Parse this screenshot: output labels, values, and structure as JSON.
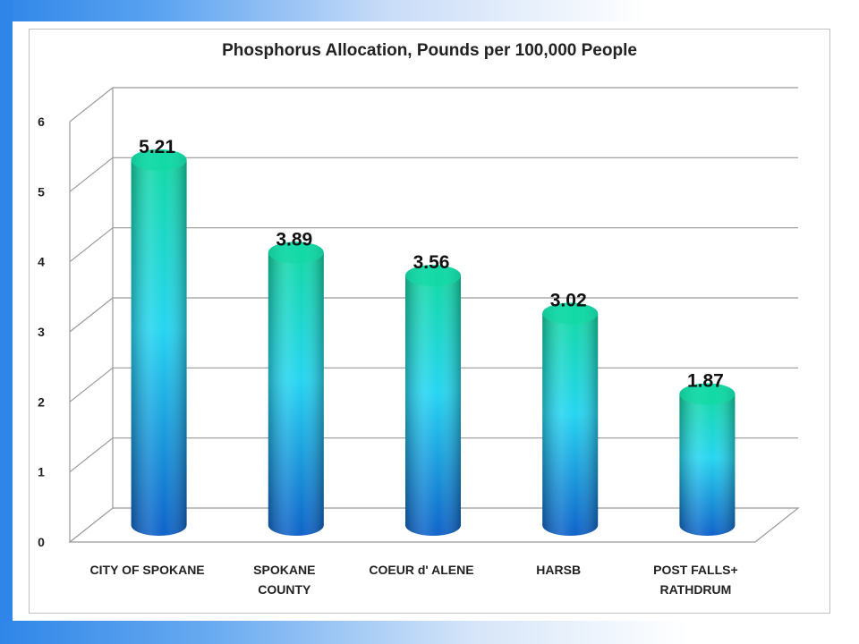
{
  "chart_data": {
    "type": "bar",
    "title": "Phosphorus Allocation, Pounds per 100,000 People",
    "categories": [
      "CITY OF SPOKANE",
      "SPOKANE COUNTY",
      "COEUR d' ALENE",
      "HARSB",
      "POST FALLS+ RATHDRUM"
    ],
    "category_lines": [
      [
        "CITY OF SPOKANE"
      ],
      [
        "SPOKANE",
        "COUNTY"
      ],
      [
        "COEUR d' ALENE"
      ],
      [
        "HARSB"
      ],
      [
        "POST FALLS+",
        "RATHDRUM"
      ]
    ],
    "values": [
      5.21,
      3.89,
      3.56,
      3.02,
      1.87
    ],
    "data_labels": [
      "5.21",
      "3.89",
      "3.56",
      "3.02",
      "1.87"
    ],
    "ylim": [
      0,
      6
    ],
    "yticks": [
      "0",
      "1",
      "2",
      "3",
      "4",
      "5",
      "6"
    ],
    "xlabel": "",
    "ylabel": "",
    "grid": true,
    "style": "3d-cylinder",
    "colors": {
      "top": "#12d9a6",
      "mid": "#26d5f0",
      "bottom": "#0f62c8"
    }
  }
}
